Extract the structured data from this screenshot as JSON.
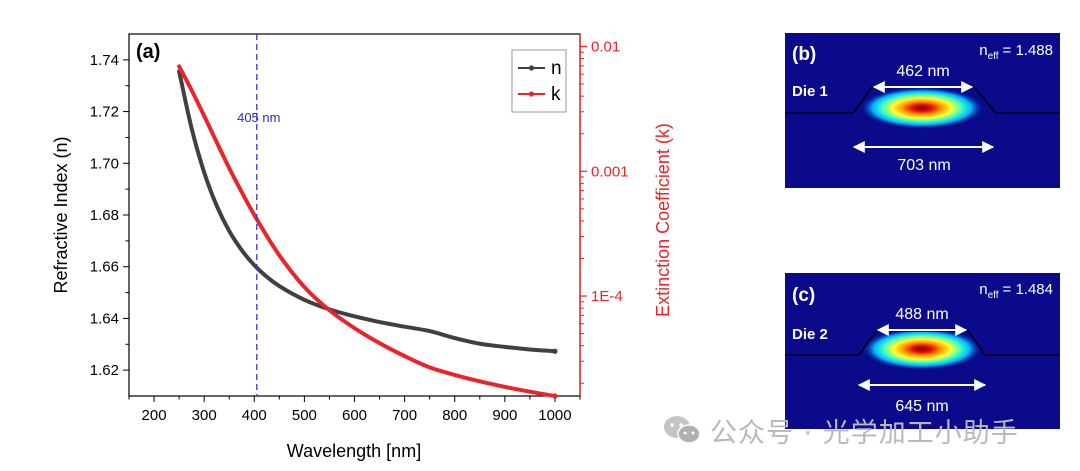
{
  "chart_data": [
    {
      "panel": "(a)",
      "type": "line",
      "xlabel": "Wavelength [nm]",
      "ylabel": "Refractive Index (n)",
      "y2label": "Extinction Coefficient (k)",
      "xlim": [
        150,
        1050
      ],
      "ylim": [
        1.61,
        1.75
      ],
      "y2scale": "log",
      "y2lim": [
        1.58e-05,
        0.0126
      ],
      "xticks": [
        200,
        300,
        400,
        500,
        600,
        700,
        800,
        900,
        1000
      ],
      "xtick_labels": [
        "200",
        "300",
        "400",
        "500",
        "600",
        "700",
        "800",
        "900",
        "1000"
      ],
      "yticks": [
        1.62,
        1.64,
        1.66,
        1.68,
        1.7,
        1.72,
        1.74
      ],
      "ytick_labels": [
        "1.62",
        "1.64",
        "1.66",
        "1.68",
        "1.70",
        "1.72",
        "1.74"
      ],
      "y2ticks": [
        0.0001,
        0.001,
        0.01
      ],
      "y2tick_labels": [
        "1E-4",
        "0.001",
        "0.01"
      ],
      "marker_line": {
        "x": 405,
        "label": "405 nm",
        "color": "#3333dd"
      },
      "legend_position": "top-right",
      "series": [
        {
          "name": "n",
          "axis": "left",
          "color": "#404040",
          "x": [
            250,
            275,
            300,
            325,
            350,
            375,
            400,
            425,
            450,
            500,
            550,
            600,
            650,
            700,
            750,
            800,
            850,
            900,
            950,
            1000
          ],
          "values": [
            1.7355,
            1.7135,
            1.6965,
            1.6836,
            1.6738,
            1.6664,
            1.6606,
            1.6561,
            1.6525,
            1.6472,
            1.6435,
            1.6408,
            1.6386,
            1.6368,
            1.6351,
            1.6324,
            1.6302,
            1.629,
            1.628,
            1.6273
          ]
        },
        {
          "name": "k",
          "axis": "right",
          "color": "#e8252b",
          "x": [
            250,
            275,
            300,
            325,
            350,
            375,
            400,
            425,
            450,
            500,
            550,
            600,
            650,
            700,
            750,
            800,
            850,
            900,
            950,
            1000
          ],
          "values": [
            0.00693,
            0.00446,
            0.00278,
            0.00171,
            0.00106,
            0.00068,
            0.000446,
            0.000303,
            0.000212,
            0.000118,
            7.69e-05,
            5.53e-05,
            4.19e-05,
            3.3e-05,
            2.68e-05,
            2.33e-05,
            2.07e-05,
            1.87e-05,
            1.71e-05,
            1.58e-05
          ]
        }
      ]
    },
    {
      "panel": "(b)",
      "type": "heatmap",
      "die_label": "Die 1",
      "neff_prefix": "n",
      "neff_sub": "eff",
      "neff_value": "= 1.488",
      "top_width_label": "462 nm",
      "bottom_width_label": "703 nm",
      "top_width_nm": 462,
      "bottom_width_nm": 703
    },
    {
      "panel": "(c)",
      "type": "heatmap",
      "die_label": "Die 2",
      "neff_prefix": "n",
      "neff_sub": "eff",
      "neff_value": "= 1.484",
      "top_width_label": "488 nm",
      "bottom_width_label": "645 nm",
      "top_width_nm": 488,
      "bottom_width_nm": 645
    }
  ],
  "watermark": {
    "text": "公众号 · 光学加工小助手",
    "icon": "wechat-icon"
  },
  "colors": {
    "n_line": "#404040",
    "k_line": "#e8252b",
    "marker": "#3333dd",
    "field_bg": "#0a0a8a"
  }
}
